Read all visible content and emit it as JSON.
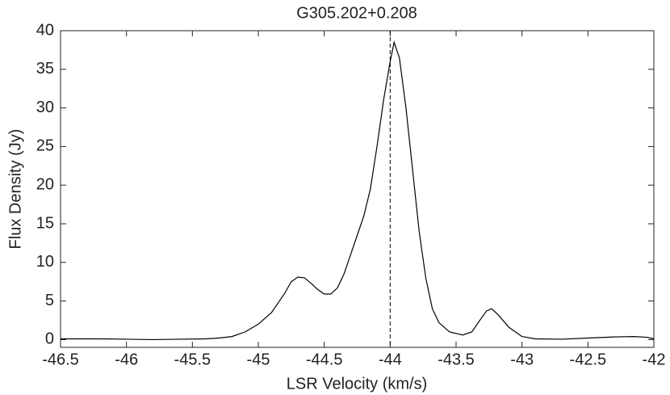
{
  "chart_data": {
    "type": "line",
    "title": "G305.202+0.208",
    "xlabel": "LSR Velocity (km/s)",
    "ylabel": "Flux Density (Jy)",
    "x": [
      -46.5,
      -46.2,
      -46,
      -45.8,
      -45.6,
      -45.4,
      -45.3,
      -45.2,
      -45.1,
      -45.0,
      -44.9,
      -44.8,
      -44.75,
      -44.7,
      -44.65,
      -44.6,
      -44.55,
      -44.5,
      -44.45,
      -44.4,
      -44.35,
      -44.3,
      -44.25,
      -44.2,
      -44.15,
      -44.1,
      -44.05,
      -44.0,
      -43.97,
      -43.93,
      -43.88,
      -43.83,
      -43.78,
      -43.73,
      -43.68,
      -43.63,
      -43.55,
      -43.45,
      -43.38,
      -43.32,
      -43.27,
      -43.23,
      -43.18,
      -43.1,
      -43.0,
      -42.9,
      -42.7,
      -42.5,
      -42.3,
      -42.15,
      -42.05,
      -42
    ],
    "series": [
      {
        "color": "#000000",
        "values": [
          0.1,
          0.1,
          0.05,
          0,
          0.05,
          0.1,
          0.2,
          0.4,
          1.0,
          2.0,
          3.5,
          6,
          7.5,
          8.1,
          8,
          7.3,
          6.5,
          5.9,
          5.9,
          6.7,
          8.5,
          11,
          13.5,
          16,
          19.5,
          25,
          31,
          36,
          38.5,
          36.5,
          30,
          22,
          14,
          8,
          4,
          2.2,
          1.0,
          0.6,
          1.0,
          2.5,
          3.7,
          4.0,
          3.2,
          1.6,
          0.4,
          0.1,
          0.05,
          0.2,
          0.35,
          0.4,
          0.3,
          0.1
        ]
      }
    ],
    "vline": -44,
    "xlim": [
      -46.5,
      -42
    ],
    "ylim": [
      -1,
      40
    ],
    "xticks": [
      -46.5,
      -46,
      -45.5,
      -45,
      -44.5,
      -44,
      -43.5,
      -43,
      -42.5,
      -42
    ],
    "yticks": [
      0,
      5,
      10,
      15,
      20,
      25,
      30,
      35,
      40
    ]
  }
}
